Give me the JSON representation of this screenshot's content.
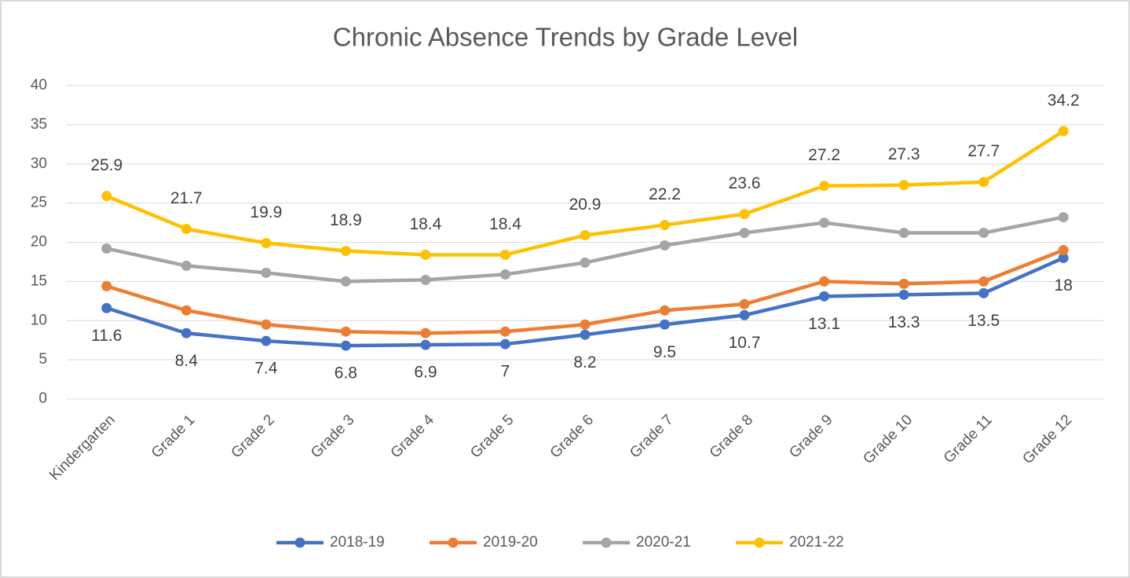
{
  "chart_data": {
    "type": "line",
    "title": "Chronic Absence Trends by Grade Level",
    "categories": [
      "Kindergarten",
      "Grade 1",
      "Grade 2",
      "Grade 3",
      "Grade 4",
      "Grade 5",
      "Grade 6",
      "Grade 7",
      "Grade 8",
      "Grade 9",
      "Grade 10",
      "Grade 11",
      "Grade 12"
    ],
    "series": [
      {
        "name": "2018-19",
        "color": "#4472c4",
        "data_labels": "below",
        "values": [
          11.6,
          8.4,
          7.4,
          6.8,
          6.9,
          7,
          8.2,
          9.5,
          10.7,
          13.1,
          13.3,
          13.5,
          18
        ]
      },
      {
        "name": "2019-20",
        "color": "#ed7d31",
        "values": [
          14.4,
          11.3,
          9.5,
          8.6,
          8.4,
          8.6,
          9.5,
          11.3,
          12.1,
          15.0,
          14.7,
          15.0,
          19.0
        ]
      },
      {
        "name": "2020-21",
        "color": "#a5a5a5",
        "values": [
          19.2,
          17.0,
          16.1,
          15.0,
          15.2,
          15.9,
          17.4,
          19.6,
          21.2,
          22.5,
          21.2,
          21.2,
          23.2
        ]
      },
      {
        "name": "2021-22",
        "color": "#ffc000",
        "data_labels": "above",
        "values": [
          25.9,
          21.7,
          19.9,
          18.9,
          18.4,
          18.4,
          20.9,
          22.2,
          23.6,
          27.2,
          27.3,
          27.7,
          34.2
        ]
      }
    ],
    "ylim": [
      0,
      40
    ],
    "yticks": [
      0,
      5,
      10,
      15,
      20,
      25,
      30,
      35,
      40
    ],
    "grid": true,
    "legend": "bottom"
  }
}
